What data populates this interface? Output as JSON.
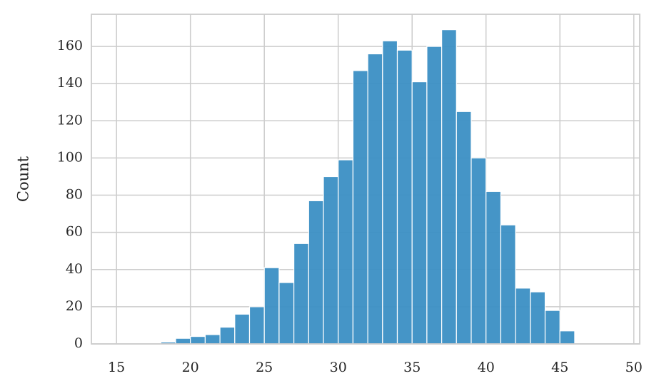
{
  "chart_data": {
    "type": "histogram",
    "ylabel": "Count",
    "bins": [
      15,
      16,
      17,
      18,
      19,
      20,
      21,
      22,
      23,
      24,
      25,
      26,
      27,
      28,
      29,
      30,
      31,
      32,
      33,
      34,
      35,
      36,
      37,
      38,
      39,
      40,
      41,
      42,
      43,
      44,
      45,
      46,
      47,
      48,
      49,
      50
    ],
    "counts": [
      0,
      0,
      0,
      1,
      3,
      4,
      5,
      9,
      16,
      20,
      41,
      33,
      54,
      77,
      90,
      99,
      147,
      156,
      163,
      158,
      141,
      160,
      169,
      125,
      100,
      82,
      64,
      30,
      28,
      18,
      7,
      0,
      0,
      0,
      0
    ],
    "color": "#3b8fc4",
    "xlim": [
      13.3,
      50.4
    ],
    "ylim": [
      0,
      177.3
    ],
    "xticks": [
      15,
      20,
      25,
      30,
      35,
      40,
      45,
      50
    ],
    "yticks": [
      0,
      20,
      40,
      60,
      80,
      100,
      120,
      140,
      160
    ],
    "grid": true
  }
}
